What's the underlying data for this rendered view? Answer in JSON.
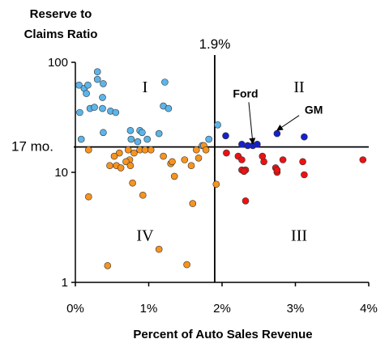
{
  "chart_data": {
    "type": "scatter",
    "ylabel_lines": [
      "Reserve to",
      "Claims Ratio"
    ],
    "xlabel": "Percent of Auto Sales Revenue",
    "x_ticks": [
      "0%",
      "1%",
      "2%",
      "3%",
      "4%"
    ],
    "y_ticks": [
      "100",
      "10",
      "1"
    ],
    "xlim": [
      0,
      4
    ],
    "ylim": [
      1,
      100
    ],
    "y_scale": "log",
    "divider_x": {
      "value": 1.9,
      "label": "1.9%"
    },
    "divider_y": {
      "value": 17,
      "label": "17 mo."
    },
    "quadrants": [
      {
        "label": "I",
        "x": 0.95,
        "y": 60
      },
      {
        "label": "II",
        "x": 3.05,
        "y": 60
      },
      {
        "label": "III",
        "x": 3.05,
        "y": 2.7
      },
      {
        "label": "IV",
        "x": 0.95,
        "y": 2.7
      }
    ],
    "annotations": [
      {
        "label": "Ford",
        "label_x": 2.32,
        "label_y": 48,
        "target_x": 2.42,
        "target_y": 17
      },
      {
        "label": "GM",
        "label_x": 3.25,
        "label_y": 34,
        "target_x": 2.75,
        "target_y": 22.5
      }
    ],
    "colors": {
      "light_blue": "#5BB5EA",
      "orange": "#F7931E",
      "red": "#EE1111",
      "dark_blue": "#1520CC"
    },
    "series": [
      {
        "color": "light_blue",
        "points": [
          [
            0.05,
            62
          ],
          [
            0.12,
            58
          ],
          [
            0.17,
            62
          ],
          [
            0.3,
            82
          ],
          [
            0.3,
            70
          ],
          [
            0.38,
            64
          ],
          [
            0.37,
            48
          ],
          [
            0.15,
            52
          ],
          [
            0.2,
            38
          ],
          [
            0.26,
            39
          ],
          [
            0.37,
            38
          ],
          [
            0.48,
            36
          ],
          [
            0.55,
            35
          ],
          [
            0.06,
            35
          ],
          [
            0.38,
            23
          ],
          [
            0.08,
            20
          ],
          [
            0.75,
            24
          ],
          [
            0.88,
            24
          ],
          [
            0.91,
            23
          ],
          [
            0.76,
            20
          ],
          [
            0.85,
            19
          ],
          [
            0.98,
            20
          ],
          [
            1.22,
            66
          ],
          [
            1.2,
            40
          ],
          [
            1.27,
            38
          ],
          [
            1.14,
            22.5
          ],
          [
            1.82,
            20
          ],
          [
            1.73,
            17.5
          ],
          [
            1.94,
            27
          ]
        ]
      },
      {
        "color": "orange",
        "points": [
          [
            0.18,
            16
          ],
          [
            0.6,
            15
          ],
          [
            0.72,
            16
          ],
          [
            0.8,
            15
          ],
          [
            0.88,
            16
          ],
          [
            0.95,
            16
          ],
          [
            1.03,
            16
          ],
          [
            0.53,
            14
          ],
          [
            0.74,
            13
          ],
          [
            0.69,
            12.5
          ],
          [
            0.47,
            11.5
          ],
          [
            0.56,
            11.5
          ],
          [
            0.62,
            11
          ],
          [
            0.75,
            11.5
          ],
          [
            1.2,
            14
          ],
          [
            1.3,
            12
          ],
          [
            1.49,
            13
          ],
          [
            1.68,
            13.5
          ],
          [
            1.58,
            11.5
          ],
          [
            1.35,
            9.2
          ],
          [
            1.32,
            12.5
          ],
          [
            1.65,
            16
          ],
          [
            1.92,
            7.8
          ],
          [
            0.18,
            6
          ],
          [
            0.92,
            6.2
          ],
          [
            1.6,
            5.2
          ],
          [
            1.14,
            2
          ],
          [
            1.52,
            1.45
          ],
          [
            0.44,
            1.42
          ],
          [
            1.75,
            17.5
          ],
          [
            1.78,
            16
          ],
          [
            0.78,
            8
          ]
        ]
      },
      {
        "color": "red",
        "points": [
          [
            2.06,
            15
          ],
          [
            2.22,
            14
          ],
          [
            2.27,
            13
          ],
          [
            2.27,
            10.5
          ],
          [
            2.32,
            10.5
          ],
          [
            2.3,
            10.2
          ],
          [
            2.57,
            12.5
          ],
          [
            2.73,
            11
          ],
          [
            2.75,
            10
          ],
          [
            2.83,
            13
          ],
          [
            3.1,
            12.5
          ],
          [
            3.12,
            9.5
          ],
          [
            3.92,
            13
          ],
          [
            2.32,
            5.5
          ],
          [
            2.55,
            14
          ],
          [
            2.75,
            10.5
          ]
        ]
      },
      {
        "color": "dark_blue",
        "points": [
          [
            2.05,
            21.5
          ],
          [
            2.27,
            18
          ],
          [
            2.35,
            17.5
          ],
          [
            2.42,
            17.5
          ],
          [
            2.48,
            18
          ],
          [
            2.75,
            22.5
          ],
          [
            3.12,
            21
          ]
        ]
      }
    ],
    "grid": false,
    "legend": "none"
  }
}
